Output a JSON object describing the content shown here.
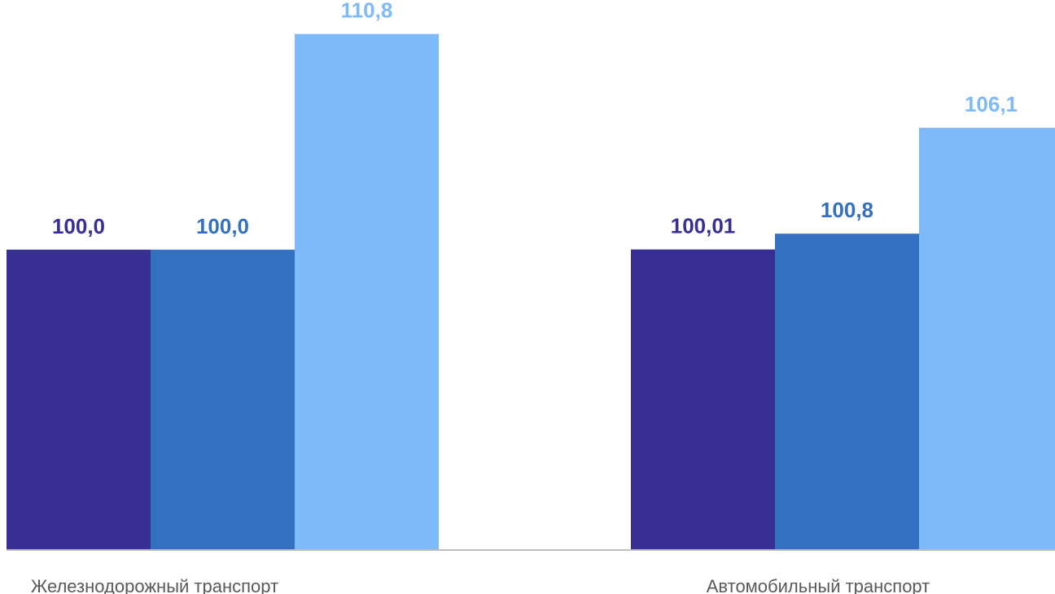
{
  "chart_data": {
    "type": "bar",
    "categories": [
      "Железнодорожный транспорт",
      "Автомобильный транспорт"
    ],
    "series": [
      {
        "values": [
          100.0,
          100.01
        ],
        "labels": [
          "100,0",
          "100,01"
        ],
        "color": "#372F93"
      },
      {
        "values": [
          100.0,
          100.8
        ],
        "labels": [
          "100,0",
          "100,8"
        ],
        "color": "#3370C0"
      },
      {
        "values": [
          110.8,
          106.1
        ],
        "labels": [
          "110,8",
          "106,1"
        ],
        "color": "#7EB9FA"
      }
    ],
    "ylim": [
      85,
      112.5
    ],
    "axis_color": "#BFBFBF",
    "grid": false
  }
}
